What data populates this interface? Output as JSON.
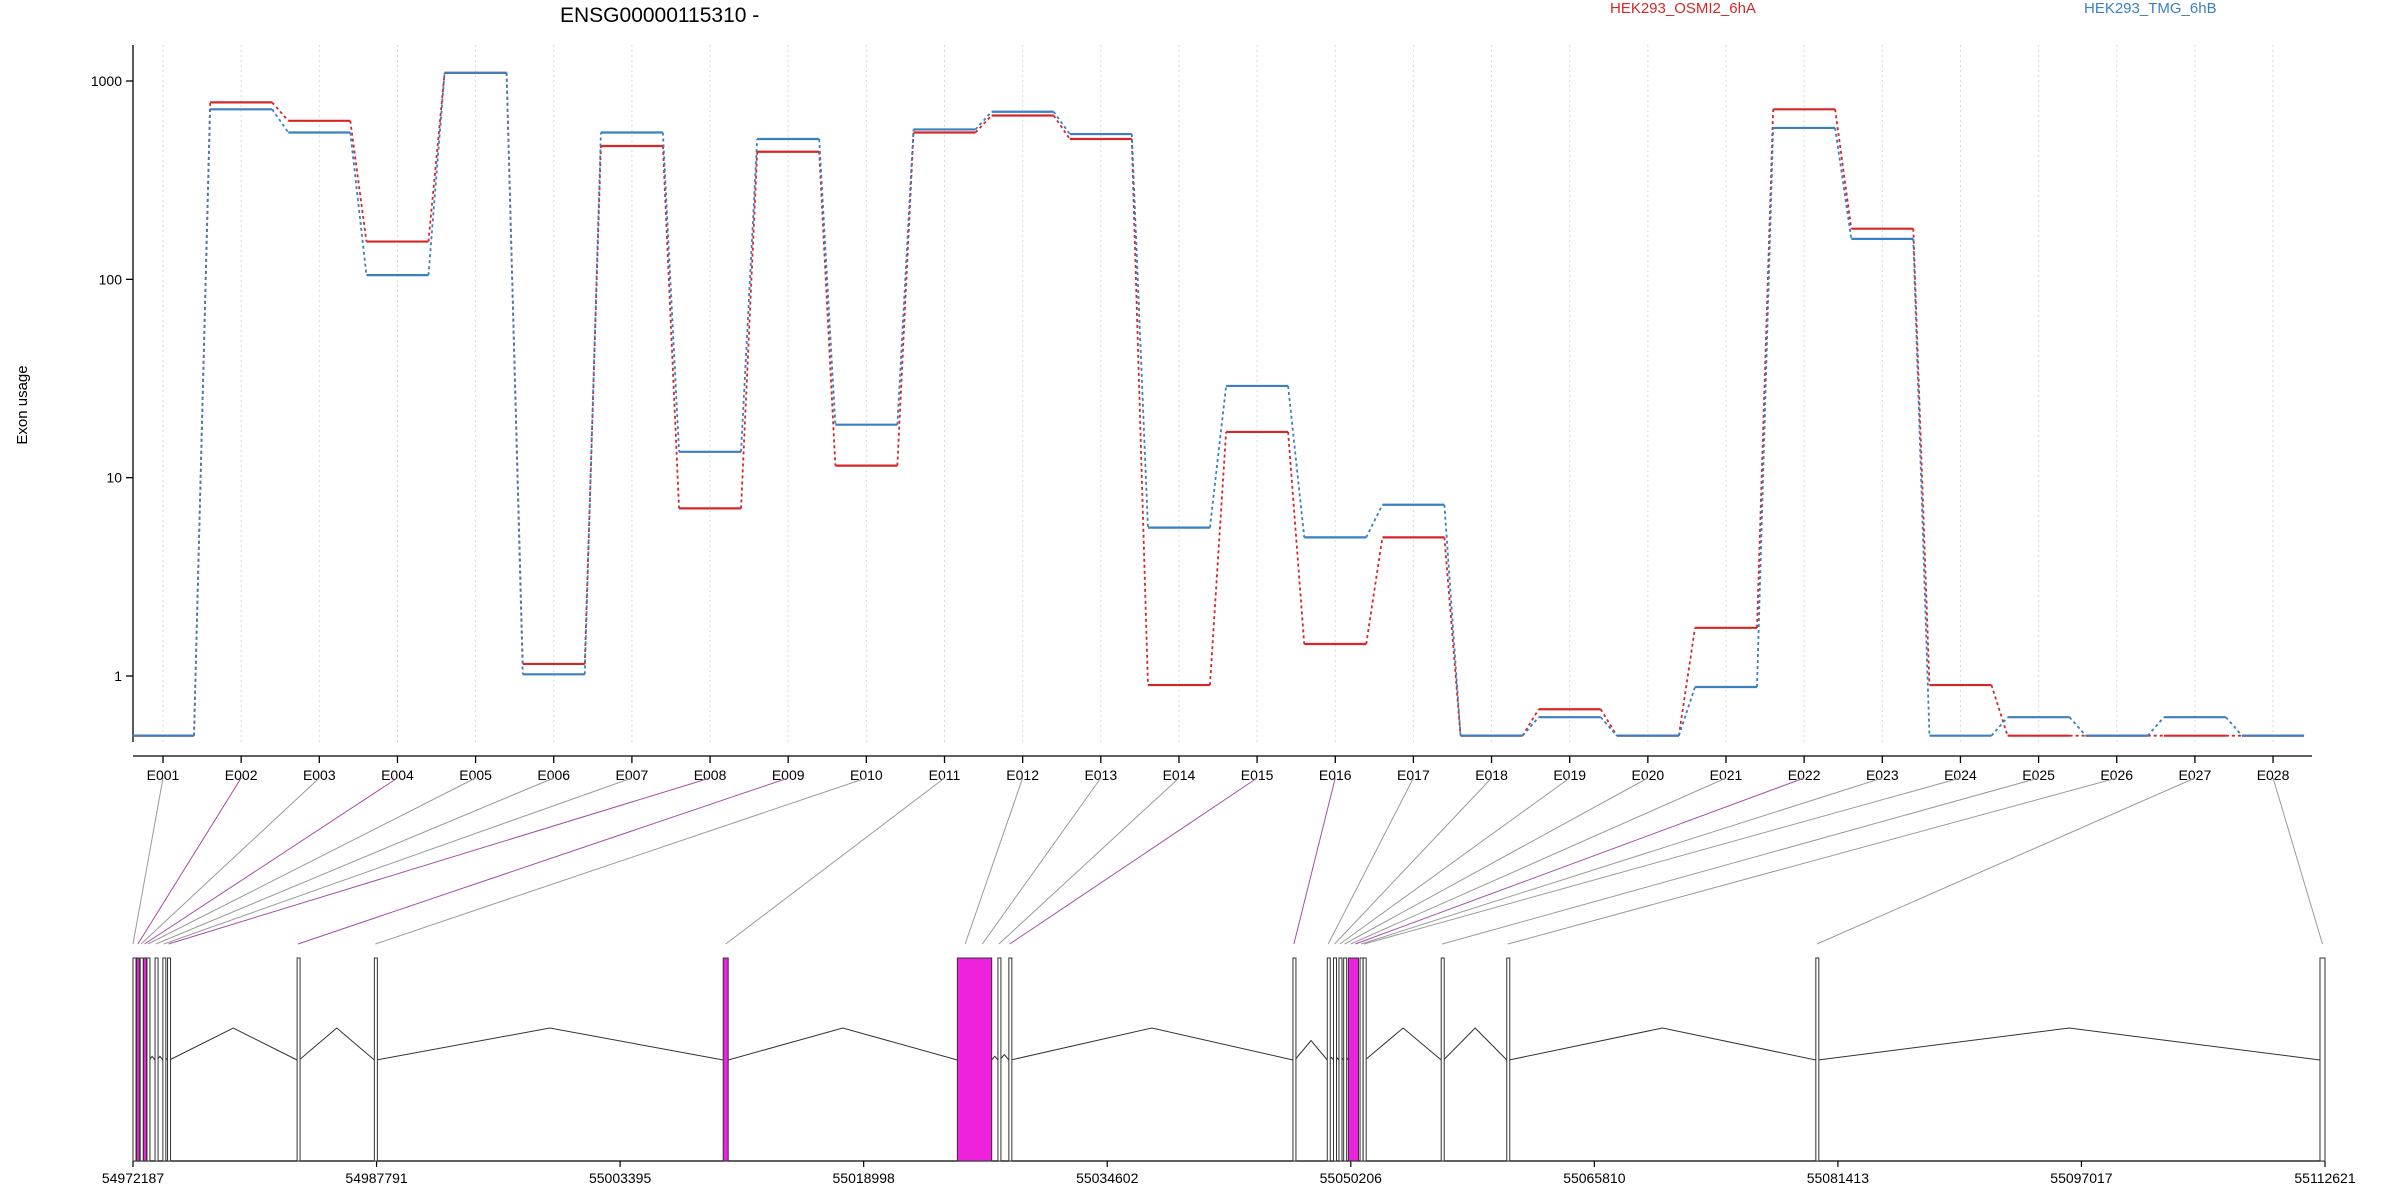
{
  "chart_data": {
    "type": "line",
    "title": "ENSG00000115310 -",
    "ylabel": "Exon usage",
    "yscale": "log",
    "y_ticks": [
      "1000",
      "100",
      "10",
      "1"
    ],
    "y_tick_values": [
      1000,
      100,
      10,
      1
    ],
    "ylim": [
      0.5,
      1200
    ],
    "grid": "vertical dotted gridlines at each exon",
    "legend_position": "top",
    "categories": [
      "E001",
      "E002",
      "E003",
      "E004",
      "E005",
      "E006",
      "E007",
      "E008",
      "E009",
      "E010",
      "E011",
      "E012",
      "E013",
      "E014",
      "E015",
      "E016",
      "E017",
      "E018",
      "E019",
      "E020",
      "E021",
      "E022",
      "E023",
      "E024",
      "E025",
      "E026",
      "E027",
      "E028"
    ],
    "series": [
      {
        "name": "HEK293_OSMI2_6hA",
        "color": "#d62728",
        "values": [
          0.5,
          780,
          630,
          155,
          1100,
          1.15,
          470,
          7,
          440,
          11.5,
          550,
          670,
          510,
          0.9,
          17,
          1.45,
          5,
          0.5,
          0.68,
          0.5,
          1.75,
          720,
          180,
          0.9,
          0.5,
          0.5,
          0.5,
          0.5
        ]
      },
      {
        "name": "HEK293_TMG_6hB",
        "color": "#3a7fc1",
        "values": [
          0.5,
          720,
          550,
          105,
          1100,
          1.02,
          550,
          13.5,
          510,
          18.5,
          570,
          700,
          540,
          5.6,
          29,
          5,
          7.3,
          0.5,
          0.62,
          0.5,
          0.88,
          580,
          160,
          0.5,
          0.62,
          0.5,
          0.62,
          0.5
        ]
      }
    ],
    "genomic_axis": {
      "tick_labels": [
        "54972187",
        "54987791",
        "55003395",
        "55018998",
        "55034602",
        "55050206",
        "55065810",
        "55081413",
        "55097017",
        "55112621"
      ],
      "tick_values": [
        54972187,
        54987791,
        55003395,
        55018998,
        55034602,
        55050206,
        55065810,
        55081413,
        55097017,
        55112621
      ],
      "highlight_color": "#ee22dd",
      "exons": [
        {
          "start": 54972187,
          "end": 54972330,
          "highlight": false
        },
        {
          "start": 54972420,
          "end": 54972600,
          "highlight": true
        },
        {
          "start": 54972650,
          "end": 54972760,
          "highlight": false
        },
        {
          "start": 54972860,
          "end": 54973000,
          "highlight": true
        },
        {
          "start": 54973080,
          "end": 54973220,
          "highlight": false
        },
        {
          "start": 54973600,
          "end": 54973720,
          "highlight": false
        },
        {
          "start": 54974100,
          "end": 54974220,
          "highlight": false
        },
        {
          "start": 54974400,
          "end": 54974520,
          "highlight": false
        },
        {
          "start": 54982700,
          "end": 54982830,
          "highlight": false
        },
        {
          "start": 54987650,
          "end": 54987780,
          "highlight": false
        },
        {
          "start": 55010000,
          "end": 55010320,
          "highlight": true
        },
        {
          "start": 55025000,
          "end": 55027200,
          "highlight": true
        },
        {
          "start": 55027600,
          "end": 55027720,
          "highlight": false
        },
        {
          "start": 55028300,
          "end": 55028420,
          "highlight": false
        },
        {
          "start": 55046500,
          "end": 55046620,
          "highlight": false
        },
        {
          "start": 55048700,
          "end": 55048820,
          "highlight": false
        },
        {
          "start": 55049100,
          "end": 55049250,
          "highlight": false
        },
        {
          "start": 55049450,
          "end": 55049570,
          "highlight": false
        },
        {
          "start": 55049750,
          "end": 55049870,
          "highlight": false
        },
        {
          "start": 55050050,
          "end": 55050700,
          "highlight": true
        },
        {
          "start": 55050800,
          "end": 55050920,
          "highlight": false
        },
        {
          "start": 55051000,
          "end": 55051120,
          "highlight": false
        },
        {
          "start": 55056000,
          "end": 55056150,
          "highlight": false
        },
        {
          "start": 55060200,
          "end": 55060350,
          "highlight": false
        },
        {
          "start": 55080000,
          "end": 55080150,
          "highlight": false
        },
        {
          "start": 55112300,
          "end": 55112621,
          "highlight": false
        }
      ],
      "exon_link_targets": [
        54972187,
        54972500,
        54972700,
        54972930,
        54973150,
        54973660,
        54974160,
        54974460,
        54982760,
        54987715,
        55010160,
        55025500,
        55026600,
        55027660,
        55028360,
        55046560,
        55048760,
        55049170,
        55049510,
        55049810,
        55050200,
        55050500,
        55050860,
        55051060,
        55056070,
        55060270,
        55080070,
        55112460
      ],
      "exon_link_highlight": [
        false,
        true,
        false,
        true,
        false,
        false,
        false,
        true,
        true,
        false,
        false,
        false,
        false,
        false,
        true,
        true,
        false,
        false,
        false,
        false,
        false,
        true,
        false,
        false,
        false,
        false,
        false,
        false
      ]
    }
  }
}
